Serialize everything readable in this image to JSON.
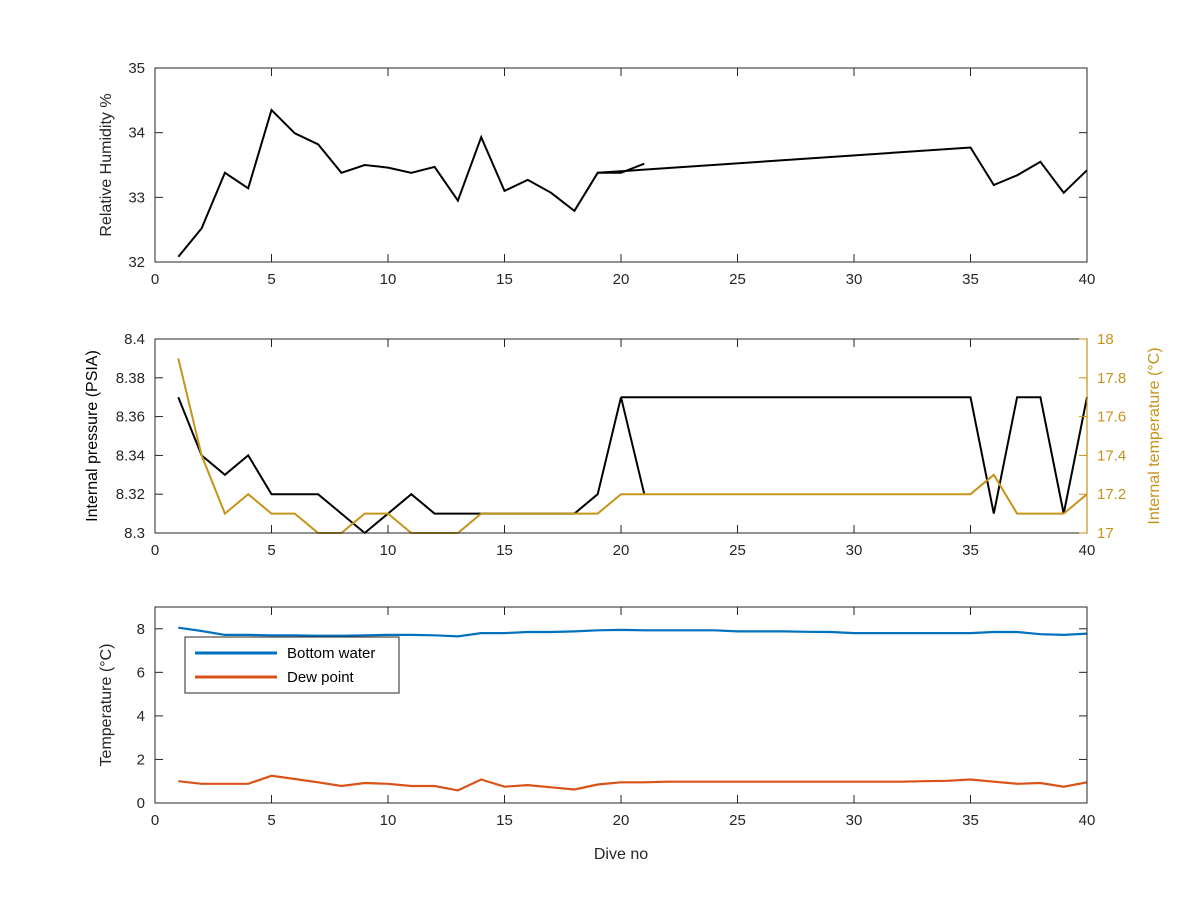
{
  "colors": {
    "axis": "#262626",
    "black_series": "#000000",
    "temp_series": "#C5941A",
    "bottom_water": "#0072BD",
    "dew_point": "#D95319",
    "background": "#FFFFFF"
  },
  "chart_data": [
    {
      "type": "line",
      "xlabel": "",
      "ylabel": "Relative Humidity %",
      "xlim": [
        0,
        40
      ],
      "ylim": [
        32,
        35
      ],
      "xticks": [
        0,
        5,
        10,
        15,
        20,
        25,
        30,
        35,
        40
      ],
      "yticks": [
        32,
        33,
        34,
        35
      ],
      "grid": false,
      "series": [
        {
          "color": "#000000",
          "x": [
            1,
            2,
            3,
            4,
            5,
            6,
            7,
            8,
            9,
            10,
            11,
            12,
            13,
            14,
            15,
            16,
            17,
            18,
            19,
            20,
            21
          ],
          "y": [
            32.08,
            32.52,
            33.38,
            33.14,
            34.35,
            33.99,
            33.82,
            33.38,
            33.5,
            33.46,
            33.38,
            33.47,
            32.95,
            33.93,
            33.1,
            33.27,
            33.07,
            32.79,
            33.38,
            33.38,
            33.52
          ]
        },
        {
          "color": "#000000",
          "x": [
            19,
            35,
            36,
            37,
            38,
            39,
            40
          ],
          "y": [
            33.38,
            33.77,
            33.19,
            33.34,
            33.55,
            33.07,
            33.42
          ]
        }
      ]
    },
    {
      "type": "line",
      "xlabel": "",
      "ylabel": "Internal pressure (PSIA)",
      "ylabel_right": "Internal temperature (°C)",
      "xlim": [
        0,
        40
      ],
      "ylim": [
        8.3,
        8.4
      ],
      "ylim_right": [
        17,
        18
      ],
      "xticks": [
        0,
        5,
        10,
        15,
        20,
        25,
        30,
        35,
        40
      ],
      "yticks": [
        8.3,
        8.32,
        8.34,
        8.36,
        8.38,
        8.4
      ],
      "yticks_labels": [
        "8.3",
        "8.32",
        "8.34",
        "8.36",
        "8.38",
        "8.4"
      ],
      "yticks_right": [
        17,
        17.2,
        17.4,
        17.6,
        17.8,
        18
      ],
      "yticks_right_labels": [
        "17",
        "17.2",
        "17.4",
        "17.6",
        "17.8",
        "18"
      ],
      "grid": false,
      "series": [
        {
          "axis": "left",
          "color": "#000000",
          "x": [
            1,
            2,
            3,
            4,
            5,
            6,
            7,
            8,
            9,
            10,
            11,
            12,
            13,
            14,
            15,
            16,
            17,
            18,
            19,
            20,
            21
          ],
          "y": [
            8.37,
            8.34,
            8.33,
            8.34,
            8.32,
            8.32,
            8.32,
            8.31,
            8.3,
            8.31,
            8.32,
            8.31,
            8.31,
            8.31,
            8.31,
            8.31,
            8.31,
            8.31,
            8.32,
            8.37,
            8.32
          ]
        },
        {
          "axis": "left",
          "color": "#000000",
          "x": [
            20,
            35,
            36,
            37,
            38,
            39,
            40
          ],
          "y": [
            8.37,
            8.37,
            8.31,
            8.37,
            8.37,
            8.31,
            8.37
          ]
        },
        {
          "axis": "right",
          "color": "#C5941A",
          "x": [
            1,
            2,
            3,
            4,
            5,
            6,
            7,
            8,
            9,
            10,
            11,
            12,
            13,
            14,
            15,
            16,
            17,
            18,
            19,
            20,
            35,
            36,
            37,
            38,
            39,
            40
          ],
          "y": [
            17.9,
            17.4,
            17.1,
            17.2,
            17.1,
            17.1,
            17.0,
            17.0,
            17.1,
            17.1,
            17.0,
            17.0,
            17.0,
            17.1,
            17.1,
            17.1,
            17.1,
            17.1,
            17.1,
            17.2,
            17.2,
            17.3,
            17.1,
            17.1,
            17.1,
            17.2
          ]
        }
      ]
    },
    {
      "type": "line",
      "xlabel": "Dive no",
      "ylabel": "Temperature (°C)",
      "xlim": [
        0,
        40
      ],
      "ylim": [
        0,
        9
      ],
      "xticks": [
        0,
        5,
        10,
        15,
        20,
        25,
        30,
        35,
        40
      ],
      "yticks": [
        0,
        2,
        4,
        6,
        8
      ],
      "grid": false,
      "legend": {
        "placement": "top-left",
        "entries": [
          "Bottom water",
          "Dew point"
        ]
      },
      "series": [
        {
          "name": "Bottom water",
          "color": "#0072BD",
          "x": [
            1,
            2,
            3,
            4,
            5,
            6,
            7,
            8,
            9,
            10,
            11,
            12,
            13,
            14,
            15,
            16,
            17,
            18,
            19,
            20,
            21,
            22,
            23,
            24,
            25,
            26,
            27,
            28,
            29,
            30,
            31,
            32,
            33,
            34,
            35,
            36,
            37,
            38,
            39,
            40
          ],
          "y": [
            8.05,
            7.9,
            7.72,
            7.72,
            7.7,
            7.7,
            7.68,
            7.68,
            7.7,
            7.72,
            7.72,
            7.7,
            7.65,
            7.8,
            7.8,
            7.85,
            7.85,
            7.88,
            7.93,
            7.95,
            7.93,
            7.93,
            7.93,
            7.93,
            7.88,
            7.88,
            7.88,
            7.86,
            7.85,
            7.8,
            7.8,
            7.8,
            7.8,
            7.8,
            7.8,
            7.85,
            7.85,
            7.75,
            7.72,
            7.78
          ]
        },
        {
          "name": "Dew point",
          "color": "#D95319",
          "x": [
            1,
            2,
            3,
            4,
            5,
            6,
            7,
            8,
            9,
            10,
            11,
            12,
            13,
            14,
            15,
            16,
            17,
            18,
            19,
            20,
            21,
            22,
            23,
            24,
            25,
            26,
            27,
            28,
            29,
            30,
            31,
            32,
            33,
            34,
            35,
            36,
            37,
            38,
            39,
            40
          ],
          "y": [
            1.0,
            0.88,
            0.88,
            0.88,
            1.25,
            1.1,
            0.95,
            0.78,
            0.92,
            0.88,
            0.78,
            0.78,
            0.58,
            1.08,
            0.75,
            0.82,
            0.72,
            0.62,
            0.85,
            0.95,
            0.95,
            0.98,
            0.98,
            0.98,
            0.98,
            0.98,
            0.98,
            0.98,
            0.98,
            0.98,
            0.98,
            0.98,
            1.0,
            1.02,
            1.08,
            0.98,
            0.88,
            0.92,
            0.75,
            0.95
          ]
        }
      ]
    }
  ]
}
